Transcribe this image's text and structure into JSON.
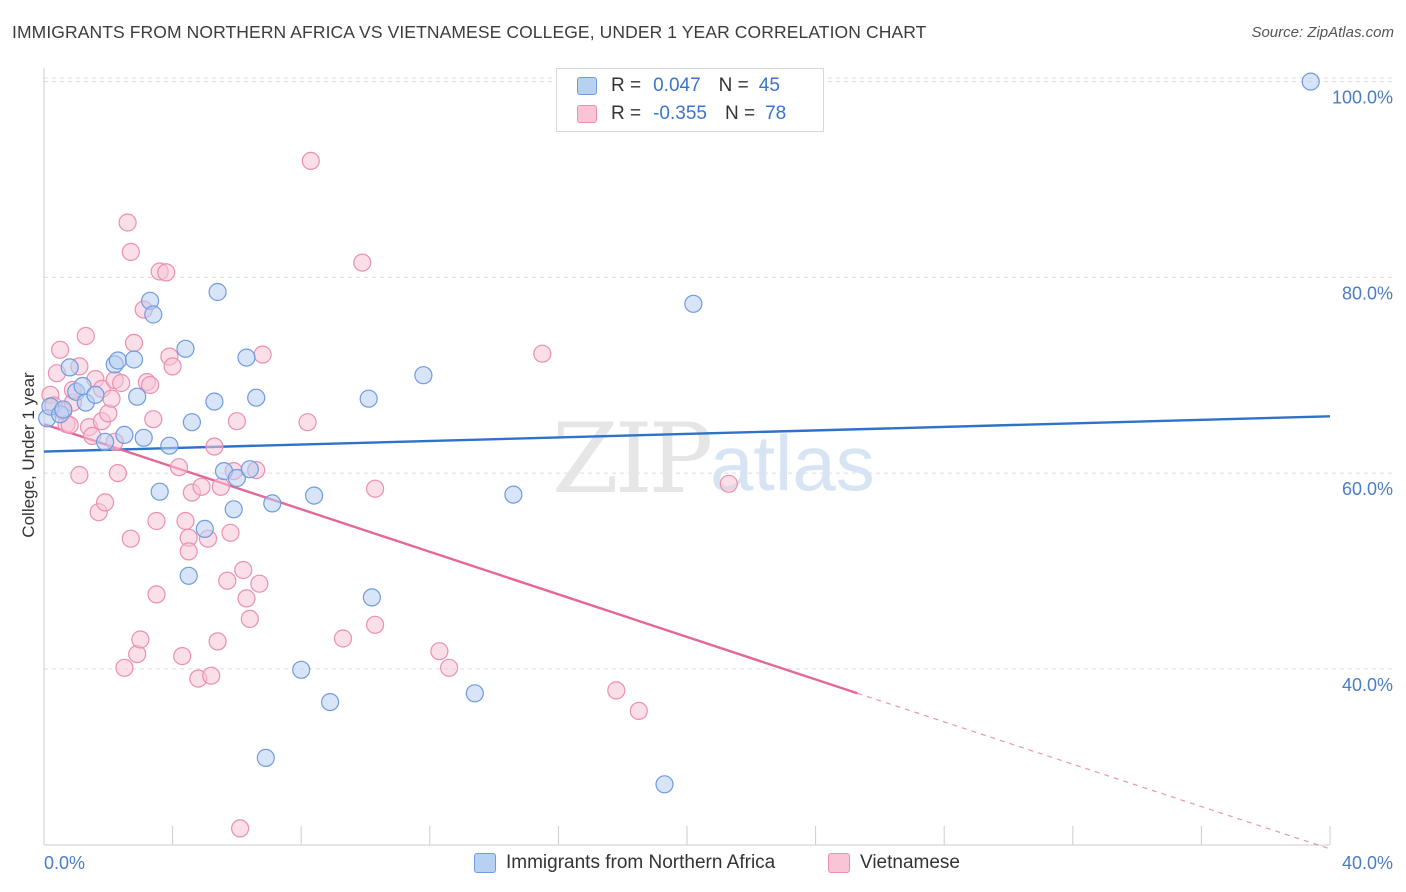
{
  "title": "IMMIGRANTS FROM NORTHERN AFRICA VS VIETNAMESE COLLEGE, UNDER 1 YEAR CORRELATION CHART",
  "source": "Source: ZipAtlas.com",
  "watermark": {
    "zip": "ZIP",
    "atlas": "atlas"
  },
  "legend": {
    "rows": [
      {
        "r_label": "R =",
        "r_value": "0.047",
        "n_label": "N =",
        "n_value": "45"
      },
      {
        "r_label": "R =",
        "r_value": "-0.355",
        "n_label": "N =",
        "n_value": "78"
      }
    ]
  },
  "bottom_legend": [
    "Immigrants from Northern Africa",
    "Vietnamese"
  ],
  "colors": {
    "blue_fill": "#b8d0f2",
    "blue_stroke": "#6f9be0",
    "blue_line": "#2f72c9",
    "pink_fill": "#f8c4d6",
    "pink_stroke": "#ec8fb0",
    "pink_line": "#e4679a",
    "tick_text": "#4a7cc7",
    "grid": "#dcdcdc"
  },
  "chart_data": {
    "type": "scatter",
    "title": "IMMIGRANTS FROM NORTHERN AFRICA VS VIETNAMESE COLLEGE, UNDER 1 YEAR CORRELATION CHART",
    "xlabel": "",
    "ylabel": "College, Under 1 year",
    "xlim": [
      0,
      40
    ],
    "ylim": [
      22,
      102
    ],
    "x_tick_labels": [
      "0.0%",
      "40.0%"
    ],
    "y_ticks": [
      40,
      60,
      80,
      100
    ],
    "y_tick_labels": [
      "40.0%",
      "60.0%",
      "80.0%",
      "100.0%"
    ],
    "grid": "horizontal dashed",
    "legend_position": "top-center",
    "series": [
      {
        "name": "Immigrants from Northern Africa",
        "color": "blue",
        "points": [
          [
            0.1,
            65.6
          ],
          [
            0.2,
            66.8
          ],
          [
            0.5,
            66.0
          ],
          [
            0.8,
            70.8
          ],
          [
            1.0,
            68.3
          ],
          [
            1.2,
            68.9
          ],
          [
            1.3,
            67.2
          ],
          [
            1.6,
            68.0
          ],
          [
            1.9,
            63.2
          ],
          [
            2.2,
            71.1
          ],
          [
            2.3,
            71.5
          ],
          [
            2.5,
            63.9
          ],
          [
            2.8,
            71.6
          ],
          [
            2.9,
            67.8
          ],
          [
            3.1,
            63.6
          ],
          [
            3.3,
            77.6
          ],
          [
            3.4,
            76.2
          ],
          [
            3.6,
            58.1
          ],
          [
            3.9,
            62.8
          ],
          [
            4.4,
            72.7
          ],
          [
            4.5,
            49.5
          ],
          [
            4.6,
            65.2
          ],
          [
            5.0,
            54.3
          ],
          [
            5.3,
            67.3
          ],
          [
            5.4,
            78.5
          ],
          [
            5.6,
            60.2
          ],
          [
            5.9,
            56.3
          ],
          [
            6.0,
            59.5
          ],
          [
            6.3,
            71.8
          ],
          [
            6.4,
            60.4
          ],
          [
            6.6,
            67.7
          ],
          [
            6.9,
            30.9
          ],
          [
            7.1,
            56.9
          ],
          [
            8.0,
            39.9
          ],
          [
            8.4,
            57.7
          ],
          [
            8.9,
            36.6
          ],
          [
            10.1,
            67.6
          ],
          [
            10.2,
            47.3
          ],
          [
            11.8,
            70.0
          ],
          [
            13.4,
            37.5
          ],
          [
            14.6,
            57.8
          ],
          [
            19.3,
            28.2
          ],
          [
            20.2,
            77.3
          ],
          [
            39.4,
            100.0
          ],
          [
            0.6,
            66.5
          ]
        ],
        "trend": {
          "x": [
            0,
            40
          ],
          "y": [
            62.2,
            65.8
          ],
          "style": "solid"
        }
      },
      {
        "name": "Vietnamese",
        "color": "pink",
        "points": [
          [
            0.2,
            68.0
          ],
          [
            0.4,
            70.2
          ],
          [
            0.5,
            72.6
          ],
          [
            0.6,
            66.3
          ],
          [
            0.7,
            65.0
          ],
          [
            0.8,
            64.9
          ],
          [
            0.9,
            67.2
          ],
          [
            0.9,
            68.5
          ],
          [
            1.1,
            70.9
          ],
          [
            1.1,
            59.8
          ],
          [
            1.3,
            74.0
          ],
          [
            1.4,
            64.7
          ],
          [
            1.5,
            63.8
          ],
          [
            1.6,
            69.6
          ],
          [
            1.7,
            56.0
          ],
          [
            1.8,
            65.3
          ],
          [
            1.8,
            68.6
          ],
          [
            1.9,
            57.0
          ],
          [
            2.0,
            66.1
          ],
          [
            2.1,
            67.6
          ],
          [
            2.2,
            69.5
          ],
          [
            2.2,
            63.2
          ],
          [
            2.3,
            60.0
          ],
          [
            2.4,
            69.2
          ],
          [
            2.5,
            40.1
          ],
          [
            2.6,
            85.6
          ],
          [
            2.7,
            82.6
          ],
          [
            2.7,
            53.3
          ],
          [
            2.8,
            73.3
          ],
          [
            2.9,
            41.5
          ],
          [
            3.0,
            43.0
          ],
          [
            3.1,
            76.7
          ],
          [
            3.2,
            69.3
          ],
          [
            3.3,
            69.0
          ],
          [
            3.4,
            65.5
          ],
          [
            3.5,
            47.6
          ],
          [
            3.5,
            55.1
          ],
          [
            3.6,
            80.6
          ],
          [
            3.8,
            80.5
          ],
          [
            3.9,
            71.9
          ],
          [
            4.0,
            70.9
          ],
          [
            4.2,
            60.6
          ],
          [
            4.3,
            41.3
          ],
          [
            4.4,
            55.1
          ],
          [
            4.5,
            53.4
          ],
          [
            4.5,
            52.0
          ],
          [
            4.6,
            58.0
          ],
          [
            4.8,
            39.0
          ],
          [
            4.9,
            58.6
          ],
          [
            5.1,
            53.3
          ],
          [
            5.2,
            39.3
          ],
          [
            5.3,
            62.7
          ],
          [
            5.4,
            42.8
          ],
          [
            5.5,
            58.6
          ],
          [
            5.7,
            49.0
          ],
          [
            5.8,
            53.9
          ],
          [
            5.9,
            60.2
          ],
          [
            6.0,
            65.3
          ],
          [
            6.1,
            23.7
          ],
          [
            6.2,
            50.1
          ],
          [
            6.3,
            47.2
          ],
          [
            6.4,
            45.1
          ],
          [
            6.6,
            60.3
          ],
          [
            6.7,
            48.7
          ],
          [
            6.8,
            72.1
          ],
          [
            8.2,
            65.2
          ],
          [
            8.3,
            91.9
          ],
          [
            9.3,
            43.1
          ],
          [
            9.9,
            81.5
          ],
          [
            10.3,
            58.4
          ],
          [
            10.3,
            44.5
          ],
          [
            12.3,
            41.8
          ],
          [
            12.6,
            40.1
          ],
          [
            15.5,
            72.2
          ],
          [
            17.8,
            37.8
          ],
          [
            18.5,
            35.7
          ],
          [
            21.3,
            58.9
          ],
          [
            0.3,
            66.9
          ]
        ],
        "trend": {
          "x": [
            0,
            25.3
          ],
          "y": [
            65.0,
            37.5
          ],
          "dashed_to": [
            40,
            21.6
          ]
        }
      }
    ]
  }
}
